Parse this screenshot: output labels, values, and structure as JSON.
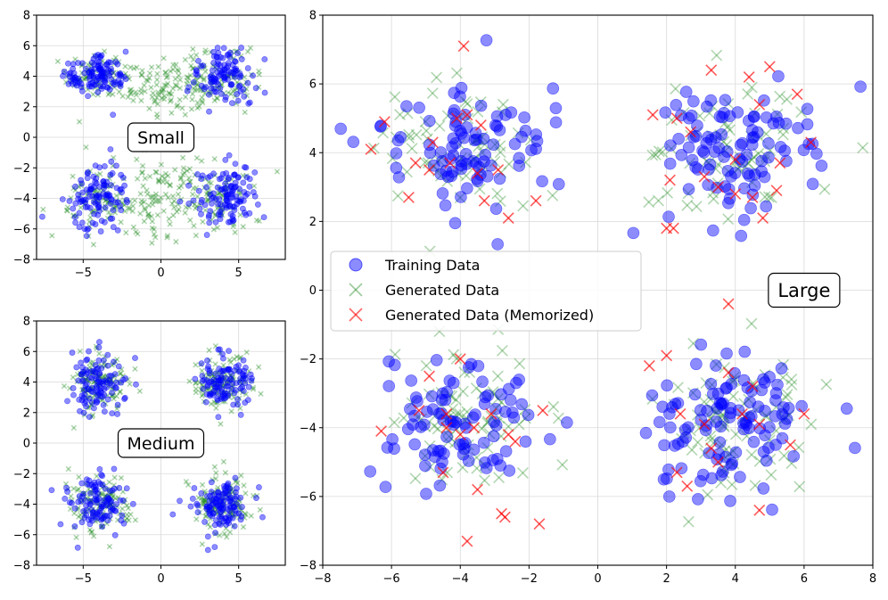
{
  "colors": {
    "training": "#0000ff",
    "generated": "#228b22",
    "memorized": "#ff0000",
    "grid": "#d9d9d9",
    "axis": "#000000"
  },
  "chart_data": [
    {
      "id": "small",
      "type": "scatter",
      "label": "Small",
      "xlim": [
        -8,
        8
      ],
      "ylim": [
        -8,
        8
      ],
      "xticks": [
        -5,
        0,
        5
      ],
      "yticks": [
        -8,
        -6,
        -4,
        -2,
        0,
        2,
        4,
        6,
        8
      ],
      "grid": true,
      "clusters": [
        {
          "center": [
            -4.2,
            4.0
          ],
          "spread": [
            1.0,
            0.8
          ],
          "train": 120,
          "gen": 70
        },
        {
          "center": [
            4.0,
            4.0
          ],
          "spread": [
            1.0,
            0.8
          ],
          "train": 110,
          "gen": 70
        },
        {
          "center": [
            0.0,
            3.5
          ],
          "spread": [
            2.2,
            1.0
          ],
          "train": 0,
          "gen": 130
        },
        {
          "center": [
            -4.2,
            -4.0
          ],
          "spread": [
            1.0,
            1.0
          ],
          "train": 110,
          "gen": 60
        },
        {
          "center": [
            4.0,
            -4.0
          ],
          "spread": [
            1.1,
            1.0
          ],
          "train": 120,
          "gen": 60
        },
        {
          "center": [
            0.0,
            -4.0
          ],
          "spread": [
            2.3,
            1.3
          ],
          "train": 0,
          "gen": 160
        }
      ],
      "memorized_points": []
    },
    {
      "id": "medium",
      "type": "scatter",
      "label": "Medium",
      "xlim": [
        -8,
        8
      ],
      "ylim": [
        -8,
        8
      ],
      "xticks": [
        -5,
        0,
        5
      ],
      "yticks": [
        -8,
        -6,
        -4,
        -2,
        0,
        2,
        4,
        6,
        8
      ],
      "grid": true,
      "clusters": [
        {
          "center": [
            -4.0,
            4.0
          ],
          "spread": [
            0.9,
            0.9
          ],
          "train": 110,
          "gen": 130
        },
        {
          "center": [
            4.0,
            4.0
          ],
          "spread": [
            0.9,
            0.9
          ],
          "train": 110,
          "gen": 130
        },
        {
          "center": [
            -4.0,
            -4.0
          ],
          "spread": [
            0.9,
            0.9
          ],
          "train": 110,
          "gen": 130
        },
        {
          "center": [
            4.0,
            -4.0
          ],
          "spread": [
            1.0,
            0.9
          ],
          "train": 120,
          "gen": 140
        }
      ],
      "memorized_points": []
    },
    {
      "id": "large",
      "type": "scatter",
      "label": "Large",
      "xlim": [
        -8,
        8
      ],
      "ylim": [
        -8,
        8
      ],
      "xticks": [
        -8,
        -6,
        -4,
        -2,
        0,
        2,
        4,
        6,
        8
      ],
      "yticks": [
        -8,
        -6,
        -4,
        -2,
        0,
        2,
        4,
        6,
        8
      ],
      "grid": true,
      "legend": {
        "position": "center-left",
        "entries": [
          "Training Data",
          "Generated Data",
          "Generated Data (Memorized)"
        ]
      },
      "clusters": [
        {
          "center": [
            -4.0,
            4.0
          ],
          "spread": [
            1.2,
            1.0
          ],
          "train": 90,
          "gen": 70
        },
        {
          "center": [
            4.0,
            4.0
          ],
          "spread": [
            1.1,
            1.0
          ],
          "train": 100,
          "gen": 70
        },
        {
          "center": [
            -4.0,
            -4.0
          ],
          "spread": [
            1.1,
            1.0
          ],
          "train": 90,
          "gen": 80
        },
        {
          "center": [
            4.0,
            -4.0
          ],
          "spread": [
            1.2,
            1.0
          ],
          "train": 110,
          "gen": 90
        }
      ],
      "memorized_points": [
        [
          -3.9,
          7.1
        ],
        [
          -6.6,
          4.1
        ],
        [
          -4.1,
          5.0
        ],
        [
          -3.8,
          5.1
        ],
        [
          -3.4,
          4.8
        ],
        [
          -4.9,
          3.5
        ],
        [
          -5.3,
          3.7
        ],
        [
          -4.3,
          3.7
        ],
        [
          -2.9,
          3.5
        ],
        [
          -3.5,
          3.4
        ],
        [
          -5.5,
          2.7
        ],
        [
          -3.3,
          2.6
        ],
        [
          -2.6,
          2.1
        ],
        [
          -1.8,
          2.6
        ],
        [
          -6.2,
          4.9
        ],
        [
          -4.8,
          4.3
        ],
        [
          1.6,
          5.1
        ],
        [
          2.3,
          5.0
        ],
        [
          2.7,
          4.6
        ],
        [
          3.3,
          6.4
        ],
        [
          4.4,
          6.2
        ],
        [
          5.0,
          6.5
        ],
        [
          5.8,
          5.7
        ],
        [
          6.2,
          4.3
        ],
        [
          3.5,
          3.0
        ],
        [
          4.0,
          2.8
        ],
        [
          4.5,
          2.7
        ],
        [
          5.2,
          2.9
        ],
        [
          4.8,
          2.1
        ],
        [
          2.0,
          1.8
        ],
        [
          2.2,
          1.8
        ],
        [
          4.0,
          3.8
        ],
        [
          5.3,
          3.7
        ],
        [
          2.1,
          3.2
        ],
        [
          3.1,
          3.3
        ],
        [
          4.7,
          5.4
        ],
        [
          -4.9,
          -2.5
        ],
        [
          -4.0,
          -2.0
        ],
        [
          -3.6,
          -4.0
        ],
        [
          -3.1,
          -3.6
        ],
        [
          -2.6,
          -4.2
        ],
        [
          -2.4,
          -4.4
        ],
        [
          -5.2,
          -3.5
        ],
        [
          -4.4,
          -3.6
        ],
        [
          -4.5,
          -5.3
        ],
        [
          -3.5,
          -5.8
        ],
        [
          -2.8,
          -6.5
        ],
        [
          -2.7,
          -6.6
        ],
        [
          -1.7,
          -6.8
        ],
        [
          -1.6,
          -3.5
        ],
        [
          -3.8,
          -7.3
        ],
        [
          -6.3,
          -4.1
        ],
        [
          -4.0,
          -4.2
        ],
        [
          -4.4,
          -4.0
        ],
        [
          1.5,
          -2.2
        ],
        [
          2.0,
          -1.9
        ],
        [
          2.4,
          -3.6
        ],
        [
          2.3,
          -5.3
        ],
        [
          2.6,
          -5.7
        ],
        [
          3.5,
          -5.0
        ],
        [
          3.8,
          -2.4
        ],
        [
          4.2,
          -3.6
        ],
        [
          4.5,
          -2.8
        ],
        [
          4.7,
          -3.9
        ],
        [
          5.6,
          -4.5
        ],
        [
          6.0,
          -3.6
        ],
        [
          3.8,
          -0.4
        ],
        [
          4.7,
          -6.4
        ],
        [
          3.3,
          -4.6
        ],
        [
          3.1,
          -3.9
        ]
      ]
    }
  ]
}
